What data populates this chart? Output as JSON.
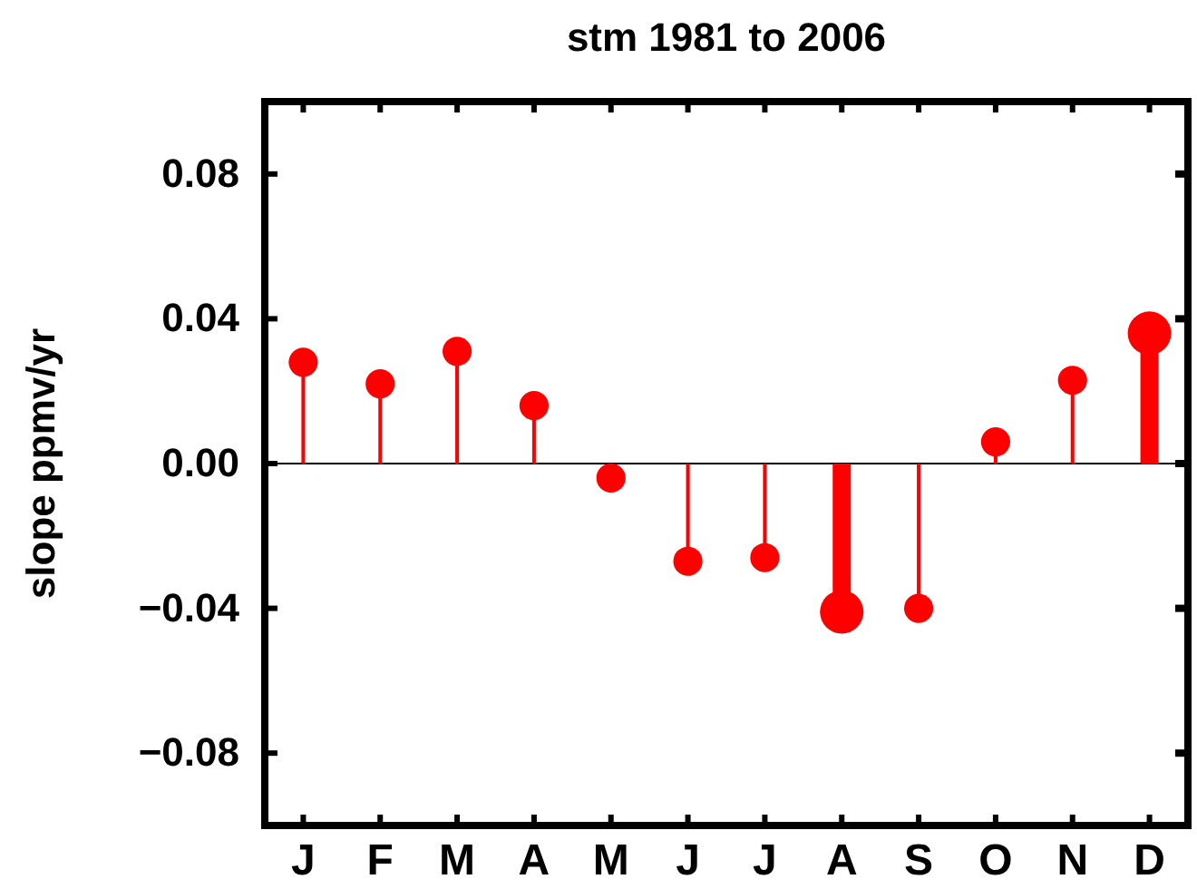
{
  "chart_data": {
    "type": "lollipop",
    "title": "stm 1981 to 2006",
    "ylabel": "slope ppmv/yr",
    "categories": [
      "J",
      "F",
      "M",
      "A",
      "M",
      "J",
      "J",
      "A",
      "S",
      "O",
      "N",
      "D"
    ],
    "values": [
      0.028,
      0.022,
      0.031,
      0.016,
      -0.004,
      -0.027,
      -0.026,
      -0.041,
      -0.04,
      0.006,
      0.023,
      0.036
    ],
    "sizes": [
      0.45,
      0.45,
      0.45,
      0.45,
      0.45,
      0.45,
      0.45,
      1,
      0.45,
      0.45,
      0.45,
      1
    ],
    "color": "#ff0000",
    "ylim": [
      -0.1,
      0.1
    ],
    "yticks": [
      {
        "value": 0.08,
        "label": "0.08"
      },
      {
        "value": 0.04,
        "label": "0.04"
      },
      {
        "value": 0,
        "label": "0.00"
      },
      {
        "value": -0.04,
        "label": "−0.04"
      },
      {
        "value": -0.08,
        "label": "−0.08"
      }
    ],
    "ref_lines": [
      {
        "axis": "y",
        "value": 0,
        "color": "#000000"
      }
    ],
    "marker": "circle"
  }
}
